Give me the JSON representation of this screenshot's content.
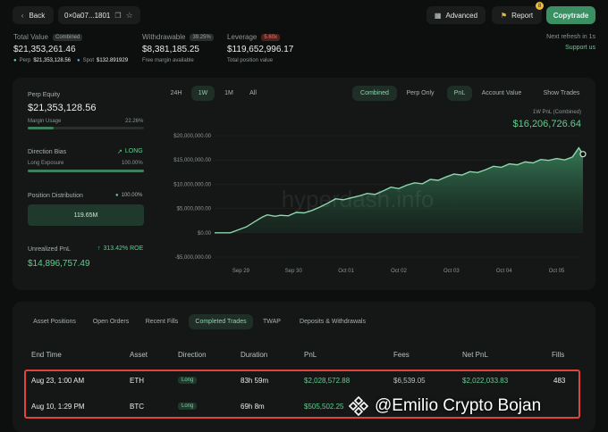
{
  "topbar": {
    "back_label": "Back",
    "address": "0×0a07...1801",
    "advanced_label": "Advanced",
    "report_label": "Report",
    "report_badge": "8",
    "copytrade_label": "Copytrade"
  },
  "stats": {
    "total_value_label": "Total Value",
    "total_value_chip": "Combined",
    "total_value": "$21,353,261.46",
    "perp_label": "Perp",
    "perp_value": "$21,353,128.56",
    "spot_label": "Spot",
    "spot_value": "$132.891929",
    "withdrawable_label": "Withdrawable",
    "withdrawable_pct": "39.25%",
    "withdrawable_value": "$8,381,185.25",
    "withdrawable_sub": "Free margin available",
    "leverage_label": "Leverage",
    "leverage_chip": "5.60x",
    "leverage_value": "$119,652,996.17",
    "leverage_sub": "Total position value",
    "refresh_label": "Next refresh in 1s",
    "support_label": "Support us"
  },
  "left_panel": {
    "perp_equity_label": "Perp Equity",
    "perp_equity_value": "$21,353,128.56",
    "margin_usage_label": "Margin Usage",
    "margin_usage_value": "22.26%",
    "margin_usage_fraction": 0.2226,
    "direction_bias_label": "Direction Bias",
    "direction_bias_value": "LONG",
    "long_exposure_label": "Long Exposure",
    "long_exposure_value": "100.00%",
    "long_exposure_fraction": 1.0,
    "position_distribution_label": "Position Distribution",
    "position_distribution_value": "100.00%",
    "position_distribution_amount": "119.65M",
    "unrealized_pnl_label": "Unrealized PnL",
    "unrealized_pnl_roe": "313.42% ROE",
    "unrealized_pnl_value": "$14,896,757.49"
  },
  "chart_controls": {
    "ranges": [
      "24H",
      "1W",
      "1M",
      "All"
    ],
    "active_range": "1W",
    "modes": [
      "Combined",
      "Perp Only"
    ],
    "active_mode": "Combined",
    "metrics": [
      "PnL",
      "Account Value"
    ],
    "active_metric": "PnL",
    "show_trades_label": "Show Trades",
    "pnl_title": "1W PnL (Combined)",
    "pnl_value": "$16,206,726.64",
    "watermark": "hyperdash.info"
  },
  "chart_data": {
    "type": "area",
    "ylim": [
      -5000000,
      20000000
    ],
    "y_ticks": [
      20000000,
      15000000,
      10000000,
      5000000,
      0,
      -5000000
    ],
    "y_tick_labels": [
      "$20,000,000.00",
      "$15,000,000.00",
      "$10,000,000.00",
      "$5,000,000.00",
      "$0.00",
      "-$5,000,000.00"
    ],
    "x_tick_labels": [
      "Sep 29",
      "Sep 30",
      "Oct 01",
      "Oct 02",
      "Oct 03",
      "Oct 04",
      "Oct 05"
    ],
    "x_tick_positions": [
      0.5,
      1.5,
      2.5,
      3.5,
      4.5,
      5.5,
      6.5
    ],
    "xlim": [
      0,
      7
    ],
    "x": [
      0,
      0.3,
      0.45,
      0.6,
      0.75,
      0.9,
      1.0,
      1.15,
      1.25,
      1.4,
      1.55,
      1.7,
      1.85,
      2.0,
      2.15,
      2.3,
      2.45,
      2.6,
      2.75,
      2.9,
      3.05,
      3.2,
      3.35,
      3.5,
      3.65,
      3.8,
      3.95,
      4.1,
      4.25,
      4.4,
      4.55,
      4.7,
      4.85,
      5.0,
      5.15,
      5.3,
      5.45,
      5.6,
      5.75,
      5.9,
      6.05,
      6.2,
      6.35,
      6.5,
      6.65,
      6.8,
      6.92,
      7.0
    ],
    "values": [
      0,
      0,
      600000,
      1200000,
      2200000,
      3200000,
      3700000,
      3400000,
      3600000,
      3500000,
      4200000,
      4100000,
      4600000,
      5300000,
      6100000,
      7000000,
      6800000,
      7200000,
      7600000,
      8100000,
      7900000,
      8600000,
      9400000,
      9100000,
      9800000,
      10300000,
      10100000,
      11000000,
      10800000,
      11500000,
      12100000,
      11900000,
      12600000,
      12400000,
      13000000,
      13700000,
      13500000,
      14200000,
      14000000,
      14600000,
      14400000,
      15100000,
      14900000,
      15300000,
      15000000,
      15600000,
      17500000,
      16200000
    ]
  },
  "positions_tabs": {
    "tabs": [
      "Asset Positions",
      "Open Orders",
      "Recent Fills",
      "Completed Trades",
      "TWAP",
      "Deposits & Withdrawals"
    ],
    "active": "Completed Trades"
  },
  "trades_table": {
    "headers": [
      "End Time",
      "Asset",
      "Direction",
      "Duration",
      "PnL",
      "Fees",
      "Net PnL",
      "Fills"
    ],
    "rows": [
      {
        "end_time": "Aug 23, 1:00 AM",
        "asset": "ETH",
        "direction": "Long",
        "duration": "83h 59m",
        "pnl": "$2,028,572.88",
        "fees": "$6,539.05",
        "net_pnl": "$2,022,033.83",
        "fills": "483"
      },
      {
        "end_time": "Aug 10, 1:29 PM",
        "asset": "BTC",
        "direction": "Long",
        "duration": "69h 8m",
        "pnl": "$505,502.25",
        "fees": "",
        "net_pnl": "",
        "fills": ""
      }
    ],
    "highlight_color": "#e0443a"
  },
  "overlay": {
    "credit_text": "@Emilio Crypto Bojan"
  }
}
